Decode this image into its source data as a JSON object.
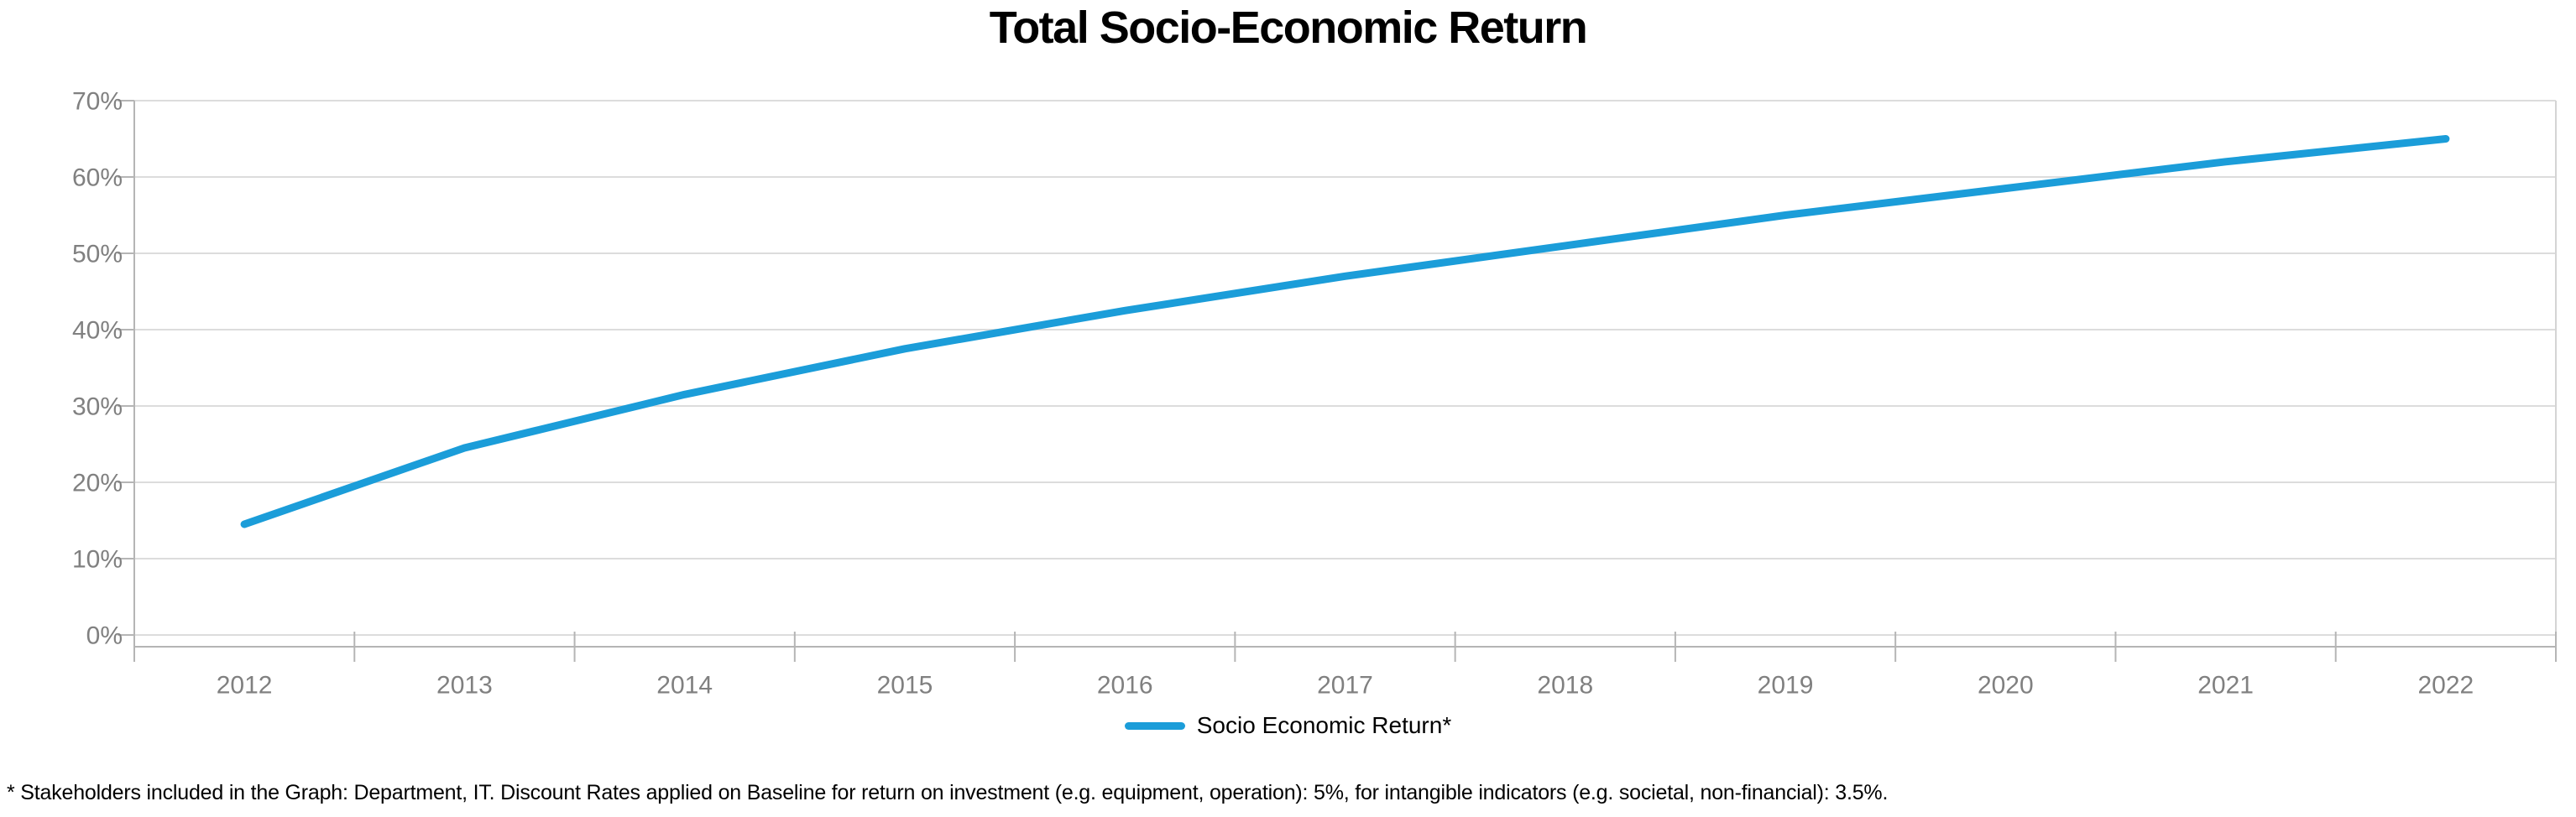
{
  "chart_data": {
    "type": "line",
    "title": "Total Socio-Economic Return",
    "categories": [
      "2012",
      "2013",
      "2014",
      "2015",
      "2016",
      "2017",
      "2018",
      "2019",
      "2020",
      "2021",
      "2022"
    ],
    "series": [
      {
        "name": "Socio Economic Return*",
        "color": "#1B9DD9",
        "values": [
          14.5,
          24.5,
          31.5,
          37.5,
          42.5,
          47,
          51,
          55,
          58.5,
          62,
          65
        ]
      }
    ],
    "xlabel": "",
    "ylabel": "",
    "ylim": [
      0,
      70
    ],
    "y_tick_step": 10,
    "y_tick_labels": [
      "0%",
      "10%",
      "20%",
      "30%",
      "40%",
      "50%",
      "60%",
      "70%"
    ],
    "grid": true,
    "legend_position": "bottom"
  },
  "colors": {
    "gridline": "#dcdcdc",
    "plot_border": "#d4d4d4",
    "axis_line": "#b5b5b5",
    "tick": "#b5b5b5",
    "axis_label": "#808080",
    "background": "#ffffff"
  },
  "footnote": {
    "text": "* Stakeholders included in the Graph: Department, IT. Discount Rates applied on Baseline for return on investment (e.g. equipment, operation): 5%, for intangible indicators (e.g. societal, non-financial): 3.5%."
  }
}
